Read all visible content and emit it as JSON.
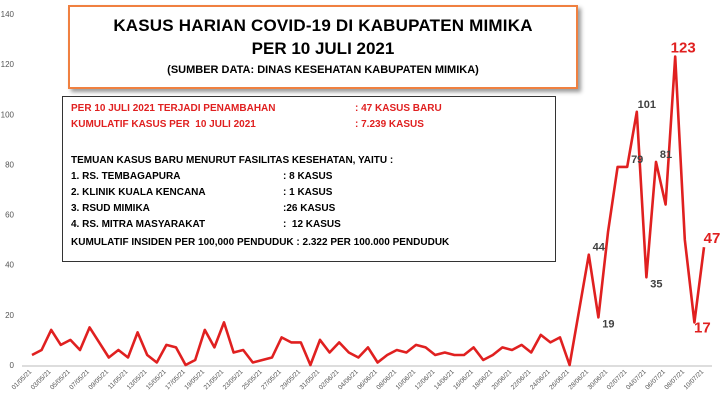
{
  "chart_data": {
    "type": "line",
    "title": "KASUS HARIAN COVID-19 DI KABUPATEN MIMIKA",
    "subtitle": "PER 10  JULI 2021",
    "source": "(SUMBER DATA: DINAS KESEHATAN KABUPATEN MIMIKA)",
    "info_box": {
      "highlight_rows": [
        [
          "PER 10 JULI 2021 TERJADI PENAMBAHAN",
          ": 47 KASUS BARU"
        ],
        [
          "KUMULATIF KASUS PER  10 JULI 2021",
          ": 7.239 KASUS"
        ]
      ],
      "facilities_heading": "TEMUAN KASUS BARU MENURUT FASILITAS KESEHATAN, YAITU :",
      "facilities": [
        [
          "1. RS. TEMBAGAPURA",
          ": 8 KASUS"
        ],
        [
          "2. KLINIK KUALA KENCANA",
          ": 1 KASUS"
        ],
        [
          "3. RSUD MIMIKA",
          ":26 KASUS"
        ],
        [
          "4. RS. MITRA MASYARAKAT",
          ":  12 KASUS"
        ]
      ],
      "incidence": "KUMULATIF INSIDEN PER 100,000 PENDUDUK : 2.322 PER 100.000 PENDUDUK"
    },
    "categories": [
      "01/05/21",
      null,
      "03/05/21",
      null,
      "05/05/21",
      null,
      "07/05/21",
      null,
      "09/05/21",
      null,
      "11/05/21",
      null,
      "13/05/21",
      null,
      "15/05/21",
      null,
      "17/05/21",
      null,
      "19/05/21",
      null,
      "21/05/21",
      null,
      "23/05/21",
      null,
      "25/05/21",
      null,
      "27/05/21",
      null,
      "29/05/21",
      null,
      "31/05/21",
      null,
      "02/06/21",
      null,
      "04/06/21",
      null,
      "06/06/21",
      null,
      "08/06/21",
      null,
      "10/06/21",
      null,
      "12/06/21",
      null,
      "14/06/21",
      null,
      "16/06/21",
      null,
      "18/06/21",
      null,
      "20/06/21",
      null,
      "22/06/21",
      null,
      "24/06/21",
      null,
      "26/06/21",
      null,
      "28/06/21",
      null,
      "30/06/21",
      null,
      "02/07/21",
      null,
      "04/07/21",
      null,
      "06/07/21",
      null,
      "08/07/21",
      null,
      "10/07/21"
    ],
    "values": [
      4,
      6,
      14,
      8,
      10,
      6,
      15,
      9,
      3,
      6,
      3,
      13,
      4,
      1,
      8,
      7,
      0,
      2,
      14,
      7,
      17,
      5,
      6,
      1,
      2,
      3,
      11,
      9,
      9,
      0,
      10,
      5,
      9,
      5,
      3,
      7,
      1,
      4,
      6,
      5,
      8,
      7,
      4,
      5,
      4,
      4,
      7,
      2,
      4,
      7,
      6,
      8,
      5,
      12,
      9,
      11,
      0,
      22,
      44,
      19,
      53,
      79,
      79,
      101,
      35,
      81,
      64,
      123,
      50,
      17,
      47
    ],
    "value_labels": [
      null,
      null,
      null,
      null,
      null,
      null,
      null,
      null,
      null,
      null,
      null,
      null,
      null,
      null,
      null,
      null,
      null,
      null,
      null,
      null,
      null,
      null,
      null,
      null,
      null,
      null,
      null,
      null,
      null,
      null,
      null,
      null,
      null,
      null,
      null,
      null,
      null,
      null,
      null,
      null,
      null,
      null,
      null,
      null,
      null,
      null,
      null,
      null,
      null,
      null,
      null,
      null,
      null,
      null,
      null,
      null,
      null,
      null,
      "44",
      "19",
      null,
      null,
      "79",
      "101",
      "35",
      "81",
      null,
      "123",
      null,
      "17",
      "47"
    ],
    "value_label_colors": [
      null,
      null,
      null,
      null,
      null,
      null,
      null,
      null,
      null,
      null,
      null,
      null,
      null,
      null,
      null,
      null,
      null,
      null,
      null,
      null,
      null,
      null,
      null,
      null,
      null,
      null,
      null,
      null,
      null,
      null,
      null,
      null,
      null,
      null,
      null,
      null,
      null,
      null,
      null,
      null,
      null,
      null,
      null,
      null,
      null,
      null,
      null,
      null,
      null,
      null,
      null,
      null,
      null,
      null,
      null,
      null,
      null,
      null,
      "#404040",
      "#404040",
      null,
      null,
      "#404040",
      "#404040",
      "#404040",
      "#404040",
      null,
      "#e02020",
      null,
      "#e02020",
      "#e02020"
    ],
    "color": "#e02020",
    "ylim": [
      0,
      140
    ],
    "yticks": [
      0,
      20,
      40,
      60,
      80,
      100,
      120,
      140
    ],
    "grid": false
  }
}
